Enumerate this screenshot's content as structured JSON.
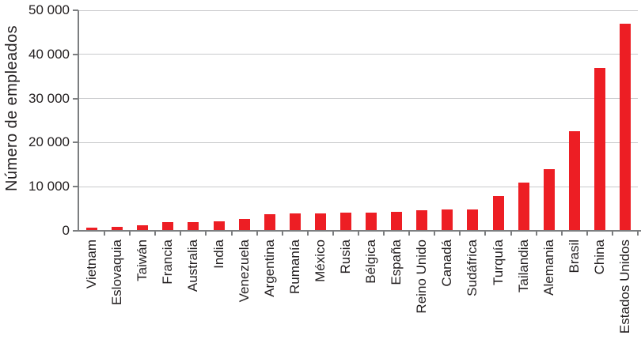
{
  "chart_data": {
    "type": "bar",
    "title": "",
    "xlabel": "",
    "ylabel": "Número de empleados",
    "ylim": [
      0,
      50000
    ],
    "grid": true,
    "legend": false,
    "yticks": [
      {
        "value": 0,
        "label": "0"
      },
      {
        "value": 10000,
        "label": "10 000"
      },
      {
        "value": 20000,
        "label": "20 000"
      },
      {
        "value": 30000,
        "label": "30 000"
      },
      {
        "value": 40000,
        "label": "40 000"
      },
      {
        "value": 50000,
        "label": "50 000"
      }
    ],
    "categories": [
      "Vietnam",
      "Eslovaquia",
      "Taiwán",
      "Francia",
      "Australia",
      "India",
      "Venezuela",
      "Argentina",
      "Rumanía",
      "México",
      "Rusia",
      "Bélgica",
      "España",
      "Reino Unido",
      "Canadá",
      "Sudáfrica",
      "Turquía",
      "Tailandia",
      "Alemania",
      "Brasil",
      "China",
      "Estados Unidos"
    ],
    "values": [
      700,
      900,
      1300,
      1900,
      2000,
      2200,
      2600,
      3700,
      3900,
      4000,
      4100,
      4200,
      4300,
      4600,
      4800,
      4900,
      7900,
      11000,
      13900,
      22500,
      37000,
      47000
    ],
    "colors": {
      "bar": "#ED1E24",
      "grid": "#C9CACC",
      "axis": "#7C7E80",
      "text": "#231F20"
    }
  }
}
